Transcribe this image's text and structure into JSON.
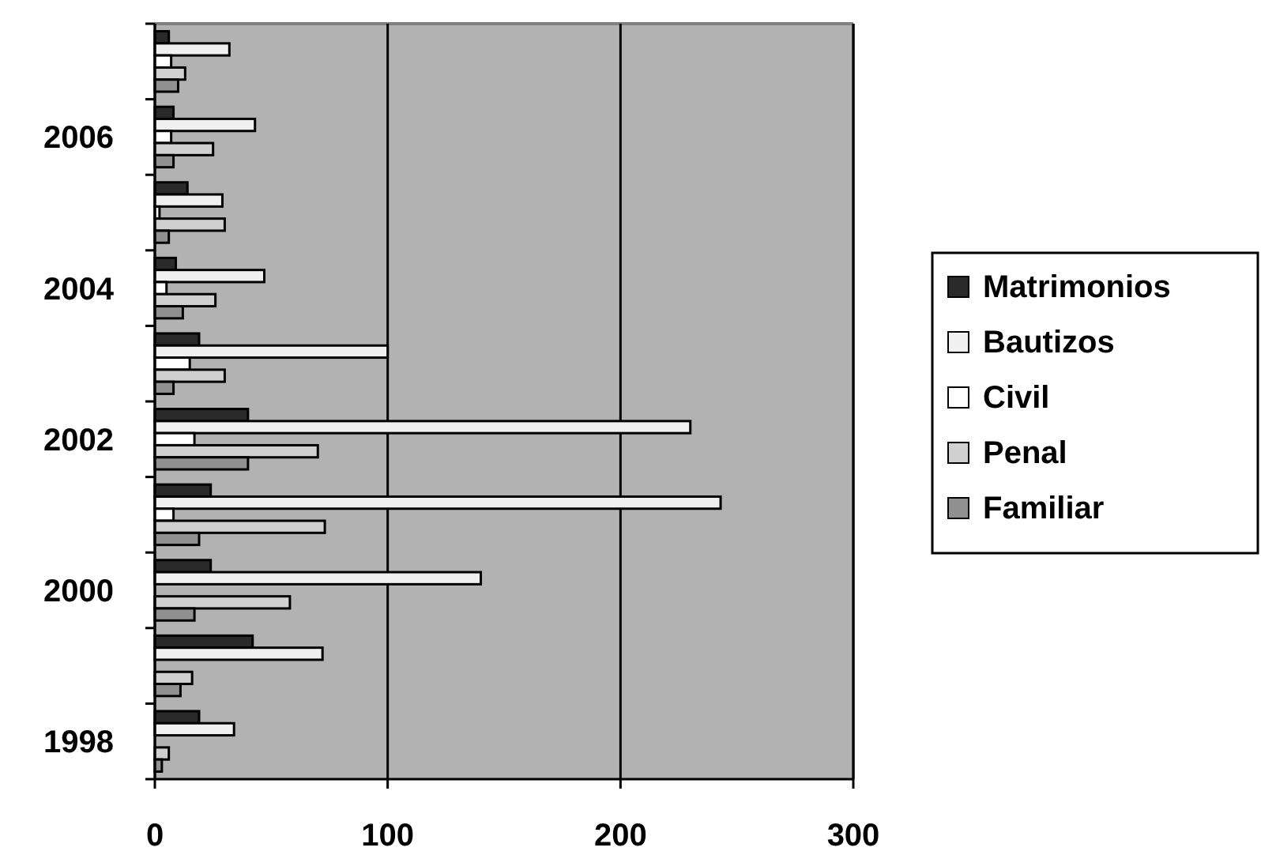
{
  "chart_data": {
    "type": "bar",
    "orientation": "horizontal",
    "categories": [
      null,
      "2006",
      null,
      "2004",
      null,
      "2002",
      null,
      "2000",
      null,
      "1998"
    ],
    "series": [
      {
        "name": "Matrimonios",
        "color": "#2a2a2a",
        "values": [
          6,
          8,
          14,
          9,
          19,
          40,
          24,
          24,
          42,
          19
        ]
      },
      {
        "name": "Bautizos",
        "color": "#f0f0f0",
        "values": [
          32,
          43,
          29,
          47,
          100,
          230,
          243,
          140,
          72,
          34
        ]
      },
      {
        "name": "Civil",
        "color": "#ffffff",
        "values": [
          7,
          7,
          2,
          5,
          15,
          17,
          8,
          null,
          null,
          null
        ]
      },
      {
        "name": "Penal",
        "color": "#d0d0d0",
        "values": [
          13,
          25,
          30,
          26,
          30,
          70,
          73,
          58,
          16,
          6
        ]
      },
      {
        "name": "Familiar",
        "color": "#909090",
        "values": [
          10,
          8,
          6,
          12,
          8,
          40,
          19,
          17,
          11,
          3
        ]
      }
    ],
    "xlim": [
      0,
      300
    ],
    "xticks": [
      0,
      100,
      200,
      300
    ],
    "grid": "x",
    "legend": "right"
  }
}
